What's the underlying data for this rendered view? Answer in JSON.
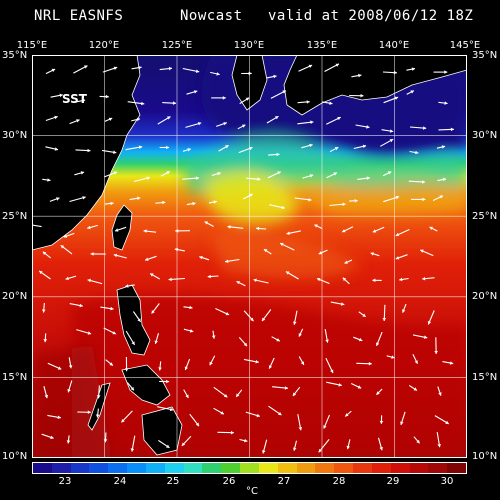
{
  "header": {
    "agency": "NRL EASNFS",
    "product": "Nowcast",
    "valid": "valid at 2008/06/12 18Z"
  },
  "map": {
    "field_label": "SST",
    "lon_labels": [
      "115°E",
      "120°E",
      "125°E",
      "130°E",
      "135°E",
      "140°E",
      "145°E"
    ],
    "lat_labels": [
      "35°N",
      "30°N",
      "25°N",
      "20°N",
      "15°N",
      "10°N"
    ],
    "lon_range": [
      115,
      145
    ],
    "lat_range": [
      10,
      35
    ]
  },
  "colorbar": {
    "tick_labels": [
      "23",
      "24",
      "25",
      "26",
      "27",
      "28",
      "29",
      "30"
    ],
    "unit": "°C",
    "colors": [
      "#1a0a8c",
      "#1e1ea8",
      "#1838c8",
      "#1050e0",
      "#0a70f0",
      "#0890f8",
      "#10b0f8",
      "#20d0f0",
      "#30e0c0",
      "#30d070",
      "#50d030",
      "#a0e020",
      "#e8e818",
      "#f0c010",
      "#f09c10",
      "#f07810",
      "#f05810",
      "#e83810",
      "#e02008",
      "#d01008",
      "#b80808",
      "#a00808",
      "#800404"
    ]
  },
  "colors": {
    "background": "#000000",
    "land": "#000000",
    "grid": "#ffffff",
    "vector": "#ffffff"
  }
}
